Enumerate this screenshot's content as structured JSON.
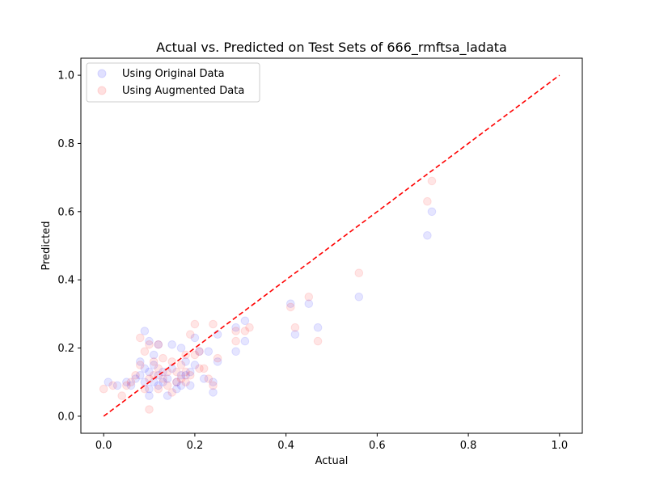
{
  "chart_data": {
    "type": "scatter",
    "title": "Actual vs. Predicted on Test Sets of 666_rmftsa_ladata",
    "xlabel": "Actual",
    "ylabel": "Predicted",
    "xlim": [
      -0.05,
      1.05
    ],
    "ylim": [
      -0.05,
      1.05
    ],
    "xticks": [
      0.0,
      0.2,
      0.4,
      0.6,
      0.8,
      1.0
    ],
    "xtick_labels": [
      "0.0",
      "0.2",
      "0.4",
      "0.6",
      "0.8",
      "1.0"
    ],
    "yticks": [
      0.0,
      0.2,
      0.4,
      0.6,
      0.8,
      1.0
    ],
    "ytick_labels": [
      "0.0",
      "0.2",
      "0.4",
      "0.6",
      "0.8",
      "1.0"
    ],
    "grid": false,
    "legend_position": "top-left",
    "reference_line": {
      "x": [
        0.0,
        1.0
      ],
      "y": [
        0.0,
        1.0
      ],
      "style": "dashed",
      "color": "#ff0000"
    },
    "series": [
      {
        "name": "Using Original Data",
        "color": "#0000ff",
        "points": [
          [
            0.01,
            0.1
          ],
          [
            0.03,
            0.09
          ],
          [
            0.05,
            0.1
          ],
          [
            0.06,
            0.09
          ],
          [
            0.07,
            0.11
          ],
          [
            0.08,
            0.12
          ],
          [
            0.08,
            0.16
          ],
          [
            0.09,
            0.25
          ],
          [
            0.09,
            0.14
          ],
          [
            0.09,
            0.1
          ],
          [
            0.1,
            0.22
          ],
          [
            0.1,
            0.13
          ],
          [
            0.1,
            0.08
          ],
          [
            0.1,
            0.06
          ],
          [
            0.11,
            0.18
          ],
          [
            0.11,
            0.15
          ],
          [
            0.11,
            0.1
          ],
          [
            0.12,
            0.21
          ],
          [
            0.12,
            0.12
          ],
          [
            0.12,
            0.09
          ],
          [
            0.13,
            0.1
          ],
          [
            0.13,
            0.13
          ],
          [
            0.14,
            0.06
          ],
          [
            0.14,
            0.11
          ],
          [
            0.15,
            0.21
          ],
          [
            0.15,
            0.14
          ],
          [
            0.16,
            0.1
          ],
          [
            0.16,
            0.08
          ],
          [
            0.17,
            0.2
          ],
          [
            0.17,
            0.12
          ],
          [
            0.17,
            0.09
          ],
          [
            0.18,
            0.16
          ],
          [
            0.18,
            0.12
          ],
          [
            0.19,
            0.13
          ],
          [
            0.19,
            0.09
          ],
          [
            0.2,
            0.23
          ],
          [
            0.2,
            0.15
          ],
          [
            0.21,
            0.19
          ],
          [
            0.22,
            0.11
          ],
          [
            0.23,
            0.19
          ],
          [
            0.24,
            0.1
          ],
          [
            0.24,
            0.07
          ],
          [
            0.25,
            0.24
          ],
          [
            0.25,
            0.16
          ],
          [
            0.29,
            0.26
          ],
          [
            0.29,
            0.19
          ],
          [
            0.31,
            0.22
          ],
          [
            0.31,
            0.28
          ],
          [
            0.41,
            0.33
          ],
          [
            0.42,
            0.24
          ],
          [
            0.45,
            0.33
          ],
          [
            0.47,
            0.26
          ],
          [
            0.56,
            0.35
          ],
          [
            0.71,
            0.53
          ],
          [
            0.72,
            0.6
          ]
        ]
      },
      {
        "name": "Using Augmented Data",
        "color": "#ff0000",
        "points": [
          [
            0.0,
            0.08
          ],
          [
            0.02,
            0.09
          ],
          [
            0.04,
            0.06
          ],
          [
            0.05,
            0.09
          ],
          [
            0.06,
            0.1
          ],
          [
            0.07,
            0.12
          ],
          [
            0.08,
            0.15
          ],
          [
            0.08,
            0.23
          ],
          [
            0.09,
            0.19
          ],
          [
            0.09,
            0.08
          ],
          [
            0.1,
            0.21
          ],
          [
            0.1,
            0.11
          ],
          [
            0.1,
            0.02
          ],
          [
            0.11,
            0.16
          ],
          [
            0.11,
            0.12
          ],
          [
            0.12,
            0.21
          ],
          [
            0.12,
            0.14
          ],
          [
            0.12,
            0.08
          ],
          [
            0.13,
            0.11
          ],
          [
            0.13,
            0.17
          ],
          [
            0.14,
            0.09
          ],
          [
            0.14,
            0.13
          ],
          [
            0.15,
            0.16
          ],
          [
            0.15,
            0.07
          ],
          [
            0.16,
            0.13
          ],
          [
            0.16,
            0.1
          ],
          [
            0.17,
            0.15
          ],
          [
            0.17,
            0.11
          ],
          [
            0.18,
            0.18
          ],
          [
            0.18,
            0.13
          ],
          [
            0.18,
            0.1
          ],
          [
            0.19,
            0.24
          ],
          [
            0.19,
            0.12
          ],
          [
            0.2,
            0.27
          ],
          [
            0.2,
            0.18
          ],
          [
            0.21,
            0.14
          ],
          [
            0.21,
            0.19
          ],
          [
            0.22,
            0.14
          ],
          [
            0.23,
            0.11
          ],
          [
            0.24,
            0.27
          ],
          [
            0.24,
            0.09
          ],
          [
            0.25,
            0.17
          ],
          [
            0.29,
            0.25
          ],
          [
            0.29,
            0.22
          ],
          [
            0.31,
            0.25
          ],
          [
            0.32,
            0.26
          ],
          [
            0.41,
            0.32
          ],
          [
            0.42,
            0.26
          ],
          [
            0.45,
            0.35
          ],
          [
            0.47,
            0.22
          ],
          [
            0.56,
            0.42
          ],
          [
            0.71,
            0.63
          ],
          [
            0.72,
            0.69
          ]
        ]
      }
    ]
  }
}
